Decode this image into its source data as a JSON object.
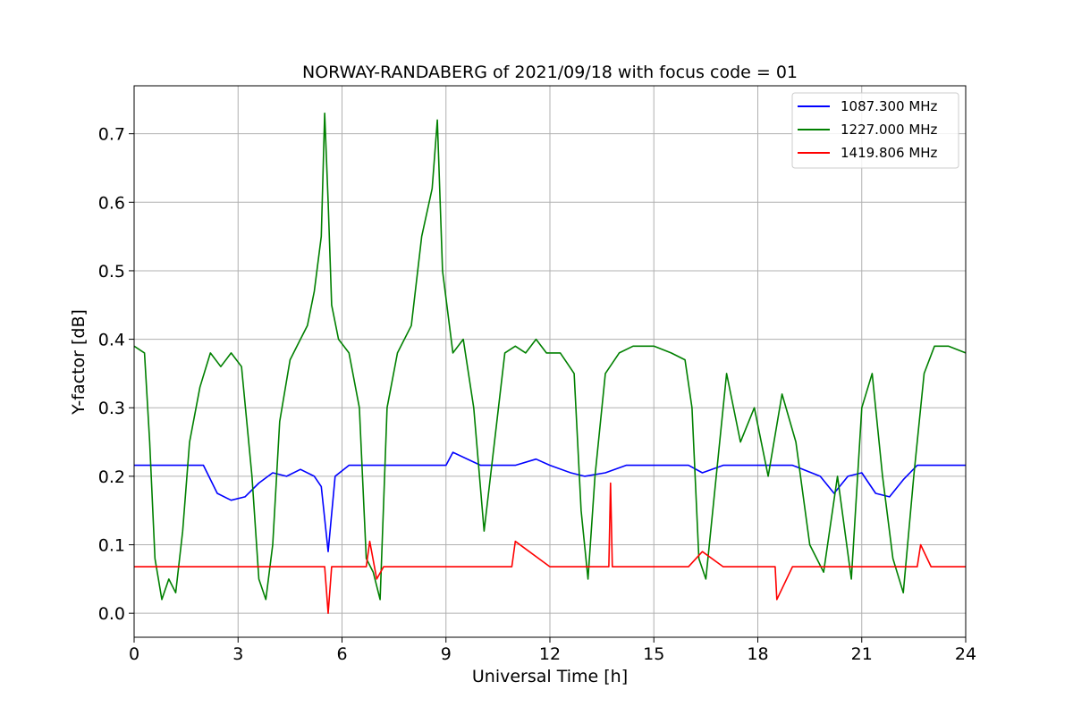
{
  "chart_data": {
    "type": "line",
    "title": "NORWAY-RANDABERG of 2021/09/18 with focus code = 01",
    "xlabel": "Universal Time [h]",
    "ylabel": "Y-factor [dB]",
    "xlim": [
      0,
      24
    ],
    "ylim": [
      -0.035,
      0.77
    ],
    "xticks": [
      0,
      3,
      6,
      9,
      12,
      15,
      18,
      21,
      24
    ],
    "xtick_labels": [
      "0",
      "3",
      "6",
      "9",
      "12",
      "15",
      "18",
      "21",
      "24"
    ],
    "yticks": [
      0.0,
      0.1,
      0.2,
      0.3,
      0.4,
      0.5,
      0.6,
      0.7
    ],
    "ytick_labels": [
      "0.0",
      "0.1",
      "0.2",
      "0.3",
      "0.4",
      "0.5",
      "0.6",
      "0.7"
    ],
    "grid": true,
    "legend_position": "top-right",
    "series": [
      {
        "name": "1087.300 MHz",
        "color": "#0000ff",
        "x": [
          0.0,
          0.4,
          0.8,
          1.2,
          1.6,
          2.0,
          2.4,
          2.8,
          3.2,
          3.6,
          4.0,
          4.4,
          4.8,
          5.2,
          5.4,
          5.6,
          5.8,
          6.2,
          6.6,
          7.0,
          7.4,
          8.0,
          9.0,
          9.2,
          10.0,
          11.0,
          11.6,
          12.0,
          12.6,
          13.0,
          13.6,
          14.2,
          15.0,
          16.0,
          16.4,
          17.0,
          18.0,
          19.0,
          19.8,
          20.2,
          20.6,
          21.0,
          21.4,
          21.8,
          22.2,
          22.6,
          23.0,
          24.0
        ],
        "y": [
          0.216,
          0.216,
          0.216,
          0.216,
          0.216,
          0.216,
          0.175,
          0.165,
          0.17,
          0.19,
          0.205,
          0.2,
          0.21,
          0.2,
          0.185,
          0.09,
          0.2,
          0.216,
          0.216,
          0.216,
          0.216,
          0.216,
          0.216,
          0.235,
          0.216,
          0.216,
          0.225,
          0.216,
          0.205,
          0.2,
          0.205,
          0.216,
          0.216,
          0.216,
          0.205,
          0.216,
          0.216,
          0.216,
          0.2,
          0.175,
          0.2,
          0.205,
          0.175,
          0.17,
          0.195,
          0.216,
          0.216,
          0.216
        ]
      },
      {
        "name": "1227.000 MHz",
        "color": "#008000",
        "x": [
          0.0,
          0.3,
          0.45,
          0.6,
          0.8,
          1.0,
          1.2,
          1.4,
          1.6,
          1.9,
          2.2,
          2.5,
          2.8,
          3.1,
          3.4,
          3.6,
          3.8,
          4.0,
          4.2,
          4.5,
          4.8,
          5.0,
          5.2,
          5.4,
          5.5,
          5.6,
          5.7,
          5.9,
          6.2,
          6.5,
          6.7,
          6.9,
          7.1,
          7.3,
          7.6,
          8.0,
          8.3,
          8.6,
          8.75,
          8.9,
          9.2,
          9.5,
          9.8,
          10.1,
          10.4,
          10.7,
          11.0,
          11.3,
          11.6,
          11.9,
          12.3,
          12.7,
          12.9,
          13.1,
          13.3,
          13.6,
          14.0,
          14.4,
          15.0,
          15.5,
          15.9,
          16.1,
          16.3,
          16.5,
          16.8,
          17.1,
          17.5,
          17.9,
          18.3,
          18.7,
          19.1,
          19.5,
          19.9,
          20.3,
          20.7,
          21.0,
          21.3,
          21.6,
          21.9,
          22.2,
          22.5,
          22.8,
          23.1,
          23.5,
          24.0
        ],
        "y": [
          0.39,
          0.38,
          0.25,
          0.08,
          0.02,
          0.05,
          0.03,
          0.12,
          0.25,
          0.33,
          0.38,
          0.36,
          0.38,
          0.36,
          0.2,
          0.05,
          0.02,
          0.1,
          0.28,
          0.37,
          0.4,
          0.42,
          0.47,
          0.55,
          0.73,
          0.6,
          0.45,
          0.4,
          0.38,
          0.3,
          0.08,
          0.06,
          0.02,
          0.3,
          0.38,
          0.42,
          0.55,
          0.62,
          0.72,
          0.5,
          0.38,
          0.4,
          0.3,
          0.12,
          0.25,
          0.38,
          0.39,
          0.38,
          0.4,
          0.38,
          0.38,
          0.35,
          0.15,
          0.05,
          0.2,
          0.35,
          0.38,
          0.39,
          0.39,
          0.38,
          0.37,
          0.3,
          0.08,
          0.05,
          0.2,
          0.35,
          0.25,
          0.3,
          0.2,
          0.32,
          0.25,
          0.1,
          0.06,
          0.2,
          0.05,
          0.3,
          0.35,
          0.2,
          0.08,
          0.03,
          0.2,
          0.35,
          0.39,
          0.39,
          0.38
        ]
      },
      {
        "name": "1419.806 MHz",
        "color": "#ff0000",
        "x": [
          0.0,
          1.0,
          2.0,
          3.0,
          4.0,
          5.0,
          5.5,
          5.6,
          5.7,
          6.0,
          6.7,
          6.8,
          7.0,
          7.2,
          8.0,
          9.0,
          10.0,
          10.9,
          11.0,
          12.0,
          13.0,
          13.7,
          13.75,
          13.8,
          14.5,
          15.0,
          16.0,
          16.4,
          17.0,
          18.0,
          18.5,
          18.55,
          19.0,
          20.0,
          21.0,
          22.0,
          22.6,
          22.7,
          23.0,
          24.0
        ],
        "y": [
          0.068,
          0.068,
          0.068,
          0.068,
          0.068,
          0.068,
          0.068,
          0.0,
          0.068,
          0.068,
          0.068,
          0.105,
          0.05,
          0.068,
          0.068,
          0.068,
          0.068,
          0.068,
          0.105,
          0.068,
          0.068,
          0.068,
          0.19,
          0.068,
          0.068,
          0.068,
          0.068,
          0.09,
          0.068,
          0.068,
          0.068,
          0.02,
          0.068,
          0.068,
          0.068,
          0.068,
          0.068,
          0.1,
          0.068,
          0.068
        ]
      }
    ]
  }
}
